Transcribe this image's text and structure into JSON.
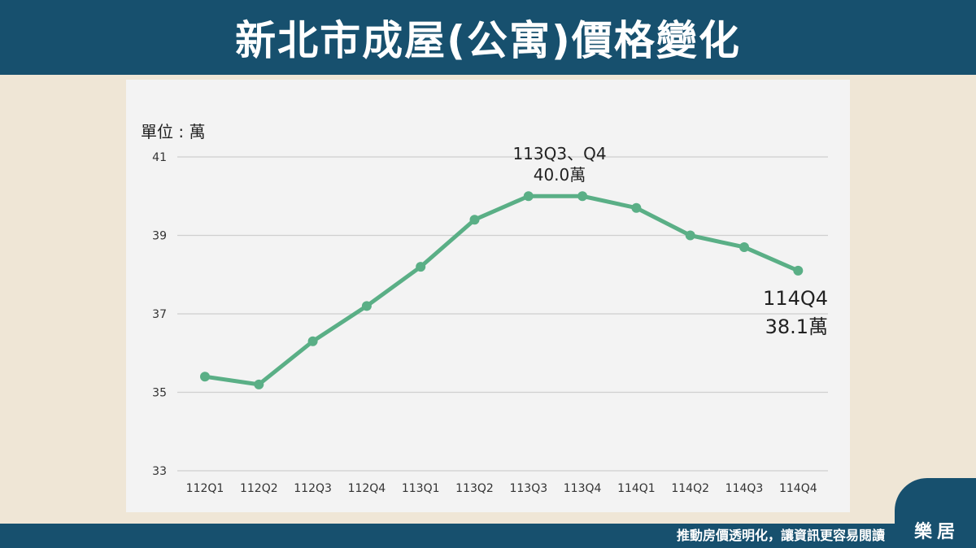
{
  "header": {
    "title": "新北市成屋(公寓)價格變化"
  },
  "unit": "單位 : 萬",
  "footer": {
    "slogan": "推動房價透明化，讓資訊更容易閱讀",
    "brand": "樂居"
  },
  "colors": {
    "line": "#5aaf86",
    "header_bg": "#17506e",
    "panel_bg": "#f3f3f3",
    "page_bg": "#efe6d6"
  },
  "chart_data": {
    "type": "line",
    "title": "新北市成屋(公寓)價格變化",
    "ylabel": "單位 : 萬",
    "xlabel": "",
    "categories": [
      "112Q1",
      "112Q2",
      "112Q3",
      "112Q4",
      "113Q1",
      "113Q2",
      "113Q3",
      "113Q4",
      "114Q1",
      "114Q2",
      "114Q3",
      "114Q4"
    ],
    "series": [
      {
        "values": [
          35.4,
          35.2,
          36.3,
          37.2,
          38.2,
          39.4,
          40.0,
          40.0,
          39.7,
          39.0,
          38.7,
          38.1
        ]
      }
    ],
    "ylim": [
      33,
      41
    ],
    "yticks": [
      33,
      35,
      37,
      39,
      41
    ],
    "grid": true,
    "annotations": [
      {
        "line1": "113Q3、Q4",
        "line2": "40.0萬"
      },
      {
        "line1": "114Q4",
        "line2": "38.1萬"
      }
    ]
  }
}
